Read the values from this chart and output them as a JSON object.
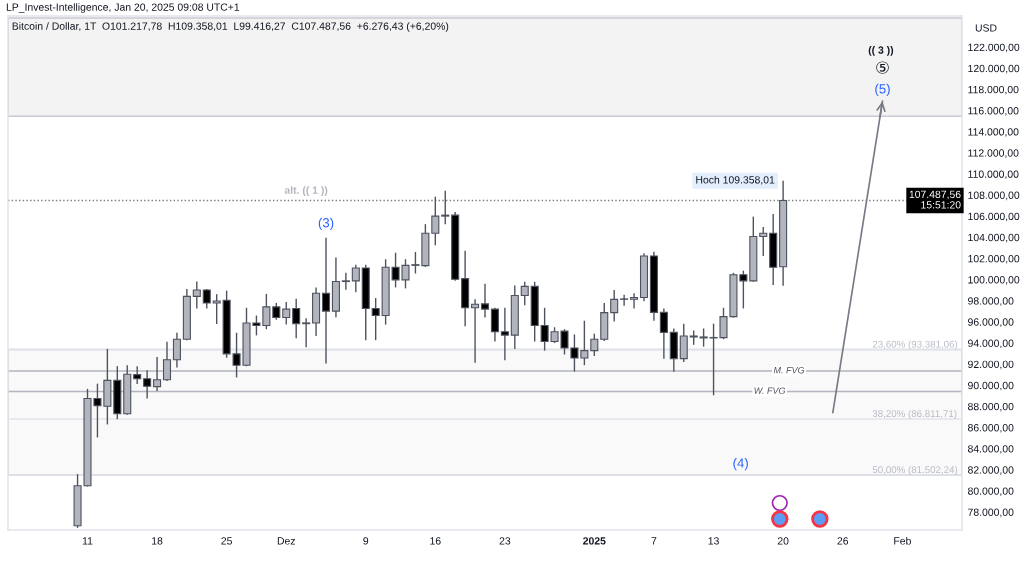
{
  "chart_data": {
    "type": "candlestick",
    "title": "Bitcoin / Dollar, 1T  O101.217,78  H109.358,01  L99.416,27  C107.487,56  +6.276,43 (+6,20%)",
    "subtitle": "LP_Invest-Intelligence, Jan 20, 2025 09:08 UTC+1",
    "ylabel": "USD",
    "x": [
      "2024-11-10",
      "2024-11-11",
      "2024-11-12",
      "2024-11-13",
      "2024-11-14",
      "2024-11-15",
      "2024-11-16",
      "2024-11-17",
      "2024-11-18",
      "2024-11-19",
      "2024-11-20",
      "2024-11-21",
      "2024-11-22",
      "2024-11-23",
      "2024-11-24",
      "2024-11-25",
      "2024-11-26",
      "2024-11-27",
      "2024-11-28",
      "2024-11-29",
      "2024-11-30",
      "2024-12-01",
      "2024-12-02",
      "2024-12-03",
      "2024-12-04",
      "2024-12-05",
      "2024-12-06",
      "2024-12-07",
      "2024-12-08",
      "2024-12-09",
      "2024-12-10",
      "2024-12-11",
      "2024-12-12",
      "2024-12-13",
      "2024-12-14",
      "2024-12-15",
      "2024-12-16",
      "2024-12-17",
      "2024-12-18",
      "2024-12-19",
      "2024-12-20",
      "2024-12-21",
      "2024-12-22",
      "2024-12-23",
      "2024-12-24",
      "2024-12-25",
      "2024-12-26",
      "2024-12-27",
      "2024-12-28",
      "2024-12-29",
      "2024-12-30",
      "2024-12-31",
      "2025-01-01",
      "2025-01-02",
      "2025-01-03",
      "2025-01-04",
      "2025-01-05",
      "2025-01-06",
      "2025-01-07",
      "2025-01-08",
      "2025-01-09",
      "2025-01-10",
      "2025-01-11",
      "2025-01-12",
      "2025-01-13",
      "2025-01-14",
      "2025-01-15",
      "2025-01-16",
      "2025-01-17",
      "2025-01-18",
      "2025-01-19",
      "2025-01-20"
    ],
    "ohlc": [
      [
        76700,
        81590,
        76500,
        80490
      ],
      [
        80490,
        89660,
        80400,
        88740
      ],
      [
        88740,
        90150,
        85060,
        88060
      ],
      [
        88010,
        93440,
        86290,
        90460
      ],
      [
        90460,
        91810,
        86780,
        87300
      ],
      [
        87300,
        91900,
        87210,
        91040
      ],
      [
        91010,
        91810,
        90120,
        90610
      ],
      [
        90610,
        91410,
        88740,
        89900
      ],
      [
        89870,
        92670,
        89450,
        90520
      ],
      [
        90520,
        94110,
        90400,
        92420
      ],
      [
        92420,
        94970,
        91690,
        94360
      ],
      [
        94360,
        99110,
        94270,
        98410
      ],
      [
        98410,
        99820,
        97270,
        99020
      ],
      [
        99020,
        99100,
        97270,
        97790
      ],
      [
        97790,
        98620,
        95800,
        97980
      ],
      [
        98040,
        98960,
        92600,
        92970
      ],
      [
        92970,
        94970,
        90740,
        91900
      ],
      [
        91900,
        97330,
        91800,
        95890
      ],
      [
        95890,
        96600,
        94720,
        95650
      ],
      [
        95650,
        98650,
        95300,
        97420
      ],
      [
        97420,
        97790,
        96200,
        96410
      ],
      [
        96410,
        97880,
        95740,
        97210
      ],
      [
        97270,
        98180,
        94440,
        95830
      ],
      [
        95830,
        96350,
        93590,
        95900
      ],
      [
        95890,
        99260,
        94660,
        98710
      ],
      [
        98710,
        103960,
        92060,
        97020
      ],
      [
        97020,
        102090,
        96440,
        99820
      ],
      [
        99820,
        100640,
        99050,
        99880
      ],
      [
        99880,
        101410,
        98800,
        101100
      ],
      [
        101100,
        101400,
        94270,
        97270
      ],
      [
        97270,
        98250,
        94270,
        96600
      ],
      [
        96600,
        101930,
        95740,
        101170
      ],
      [
        101170,
        102540,
        99260,
        99970
      ],
      [
        99970,
        101930,
        99170,
        101350
      ],
      [
        101350,
        102610,
        100580,
        101410
      ],
      [
        101320,
        105250,
        101200,
        104390
      ],
      [
        104390,
        107850,
        103250,
        106010
      ],
      [
        106010,
        108410,
        105250,
        106100
      ],
      [
        106100,
        106410,
        99880,
        100030
      ],
      [
        100090,
        102730,
        95580,
        97330
      ],
      [
        97330,
        98130,
        92120,
        97670
      ],
      [
        97700,
        99600,
        96410,
        97210
      ],
      [
        97210,
        97330,
        94140,
        95060
      ],
      [
        95060,
        97330,
        92370,
        94750
      ],
      [
        94750,
        99450,
        93440,
        98500
      ],
      [
        98500,
        99790,
        97580,
        99360
      ],
      [
        99360,
        99790,
        94140,
        95650
      ],
      [
        95650,
        97330,
        93280,
        94140
      ],
      [
        94140,
        95490,
        94000,
        95060
      ],
      [
        95120,
        95300,
        92910,
        93530
      ],
      [
        93530,
        94810,
        91290,
        92580
      ],
      [
        92580,
        96110,
        91900,
        93280
      ],
      [
        93280,
        94880,
        92770,
        94360
      ],
      [
        94360,
        97790,
        94200,
        96870
      ],
      [
        96870,
        99020,
        96040,
        98130
      ],
      [
        98170,
        98560,
        97520,
        98140
      ],
      [
        98140,
        98710,
        97270,
        98310
      ],
      [
        98310,
        102490,
        97950,
        102240
      ],
      [
        102240,
        102640,
        96110,
        96900
      ],
      [
        96900,
        97270,
        92520,
        95000
      ],
      [
        95000,
        95370,
        91290,
        92520
      ],
      [
        92520,
        95830,
        92210,
        94660
      ],
      [
        94660,
        95180,
        93830,
        94570
      ],
      [
        94570,
        95370,
        93650,
        94480
      ],
      [
        94480,
        95830,
        89050,
        94520
      ],
      [
        94510,
        97330,
        94360,
        96500
      ],
      [
        96500,
        100640,
        96400,
        100460
      ],
      [
        100460,
        100850,
        97270,
        99880
      ],
      [
        99880,
        105960,
        99800,
        104080
      ],
      [
        104080,
        104990,
        102240,
        104390
      ],
      [
        104390,
        106220,
        99480,
        101170
      ],
      [
        101217.78,
        109358.01,
        99416.27,
        107487.56
      ]
    ],
    "colors": [
      "#b2b5be",
      "#b2b5be",
      "#000000",
      "#b2b5be",
      "#000000",
      "#b2b5be",
      "#000000",
      "#000000",
      "#b2b5be",
      "#b2b5be",
      "#b2b5be",
      "#b2b5be",
      "#b2b5be",
      "#000000",
      "#b2b5be",
      "#000000",
      "#000000",
      "#b2b5be",
      "#000000",
      "#b2b5be",
      "#000000",
      "#b2b5be",
      "#000000",
      "#b2b5be",
      "#b2b5be",
      "#000000",
      "#b2b5be",
      "#b2b5be",
      "#b2b5be",
      "#000000",
      "#000000",
      "#b2b5be",
      "#000000",
      "#b2b5be",
      "#b2b5be",
      "#b2b5be",
      "#b2b5be",
      "#b2b5be",
      "#000000",
      "#000000",
      "#b2b5be",
      "#000000",
      "#000000",
      "#000000",
      "#b2b5be",
      "#b2b5be",
      "#000000",
      "#000000",
      "#b2b5be",
      "#000000",
      "#000000",
      "#b2b5be",
      "#b2b5be",
      "#b2b5be",
      "#b2b5be",
      "#000000",
      "#b2b5be",
      "#b2b5be",
      "#000000",
      "#000000",
      "#000000",
      "#b2b5be",
      "#000000",
      "#000000",
      "#b2b5be",
      "#b2b5be",
      "#b2b5be",
      "#000000",
      "#b2b5be",
      "#b2b5be",
      "#000000",
      "#b2b5be"
    ],
    "series": [
      {
        "type": "line",
        "x": [
          "2025-01-25",
          "2025-01-30"
        ],
        "values": [
          87400,
          116900
        ],
        "color": "#787b86"
      }
    ],
    "xlim": [
      "2024-11-03",
      "2025-02-07"
    ],
    "xticks": [
      {
        "value": "2024-11-11",
        "label": "11"
      },
      {
        "value": "2024-11-18",
        "label": "18"
      },
      {
        "value": "2024-11-25",
        "label": "25"
      },
      {
        "value": "2024-12-01",
        "label": "Dez"
      },
      {
        "value": "2024-12-09",
        "label": "9"
      },
      {
        "value": "2024-12-16",
        "label": "16"
      },
      {
        "value": "2024-12-23",
        "label": "23"
      },
      {
        "value": "2025-01-01",
        "label": "2025"
      },
      {
        "value": "2025-01-07",
        "label": "7"
      },
      {
        "value": "2025-01-13",
        "label": "13"
      },
      {
        "value": "2025-01-20",
        "label": "20"
      },
      {
        "value": "2025-01-26",
        "label": "26"
      },
      {
        "value": "2025-02-01",
        "label": "Feb"
      }
    ],
    "ylim": [
      76300,
      124950
    ],
    "yticks": [
      {
        "value": 78000,
        "label": "78.000,00"
      },
      {
        "value": 80000,
        "label": "80.000,00"
      },
      {
        "value": 82000,
        "label": "82.000,00"
      },
      {
        "value": 84000,
        "label": "84.000,00"
      },
      {
        "value": 86000,
        "label": "86.000,00"
      },
      {
        "value": 88000,
        "label": "88.000,00"
      },
      {
        "value": 90000,
        "label": "90.000,00"
      },
      {
        "value": 92000,
        "label": "92.000,00"
      },
      {
        "value": 94000,
        "label": "94.000,00"
      },
      {
        "value": 96000,
        "label": "96.000,00"
      },
      {
        "value": 98000,
        "label": "98.000,00"
      },
      {
        "value": 100000,
        "label": "100.000,00"
      },
      {
        "value": 102000,
        "label": "102.000,00"
      },
      {
        "value": 104000,
        "label": "104.000,00"
      },
      {
        "value": 106000,
        "label": "106.000,00"
      },
      {
        "value": 108000,
        "label": "108.000,00"
      },
      {
        "value": 110000,
        "label": "110.000,00"
      },
      {
        "value": 112000,
        "label": "112.000,00"
      },
      {
        "value": 114000,
        "label": "114.000,00"
      },
      {
        "value": 116000,
        "label": "116.000,00"
      },
      {
        "value": 118000,
        "label": "118.000,00"
      },
      {
        "value": 120000,
        "label": "120.000,00"
      },
      {
        "value": 122000,
        "label": "122.000,00"
      }
    ],
    "ref_lines": [
      {
        "axis": "y",
        "value": 107487.56,
        "label": "107.487,56\n15:51:20",
        "color": "#787b86",
        "line_style": "dotted"
      },
      {
        "axis": "y",
        "value": 91350,
        "label": "M. FVG",
        "color": "#b2b5be"
      },
      {
        "axis": "y",
        "value": 89415,
        "label": "W. FVG",
        "color": "#b2b5be"
      },
      {
        "axis": "y",
        "value": 93381.06,
        "label": "23,60% (93.381,06)",
        "color": "#e0e3eb"
      },
      {
        "axis": "y",
        "value": 86811.71,
        "label": "38,20% (86.811,71)",
        "color": "#e0e3eb"
      },
      {
        "axis": "y",
        "value": 81502.24,
        "label": "50,00% (81.502,24)",
        "color": "#e0e3eb"
      }
    ],
    "bands": [
      {
        "axis": "y",
        "from": 115465,
        "to": 124760,
        "color": "#f3f3f3"
      },
      {
        "axis": "y",
        "from": 81502.24,
        "to": 93381.06,
        "color": "#f9f9f9"
      }
    ],
    "annotations": [
      {
        "text": "alt. (( 1 ))",
        "x": "2024-12-03",
        "y": 107920
      },
      {
        "text": "(3)",
        "x": "2024-12-05",
        "y": 103960
      },
      "(4)",
      {
        "text": "(5)",
        "x": "2025-01-30",
        "y": 116900
      },
      {
        "text": "⑤",
        "x": "2025-01-30",
        "y": 116900
      },
      "(( 3 ))",
      {
        "text": "Hoch 109.358,01",
        "x": "2025-01-20",
        "y": 109358.01
      }
    ]
  }
}
